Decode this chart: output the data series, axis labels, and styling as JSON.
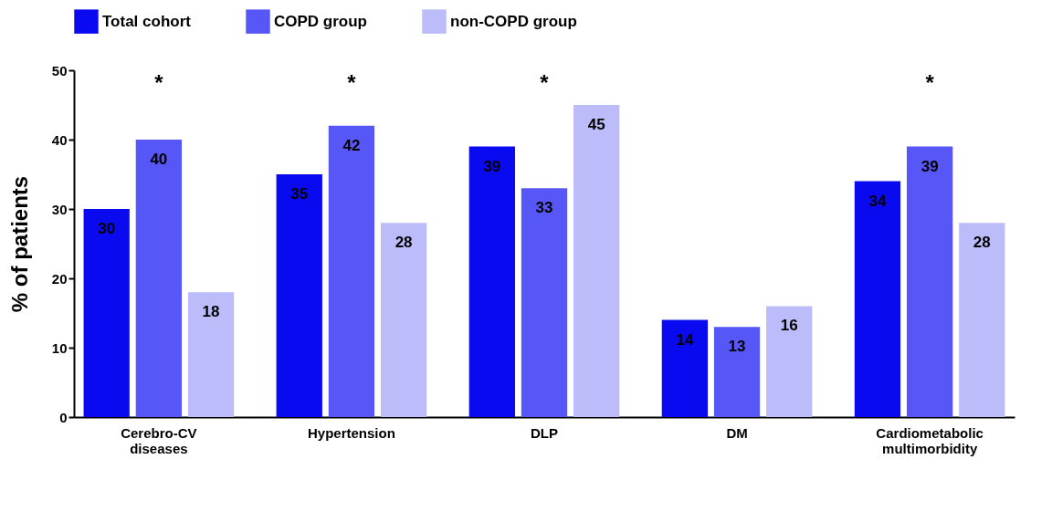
{
  "chart_data": {
    "type": "bar",
    "ylabel": "% of patients",
    "categories": [
      "Cerebro-CV diseases",
      "Hypertension",
      "DLP",
      "DM",
      "Cardiometabolic multimorbidity"
    ],
    "series": [
      {
        "name": "Total cohort",
        "color": "#0a0af0",
        "values": [
          30,
          35,
          39,
          14,
          34
        ]
      },
      {
        "name": "COPD group",
        "color": "#5757f7",
        "values": [
          40,
          42,
          33,
          13,
          39
        ]
      },
      {
        "name": "non-COPD group",
        "color": "#bcbcfa",
        "values": [
          18,
          28,
          45,
          16,
          28
        ]
      }
    ],
    "ylim": [
      0,
      50
    ],
    "yticks": [
      0,
      10,
      20,
      30,
      40,
      50
    ],
    "grid": false,
    "legend": "top",
    "data_labels": true,
    "annotations": [
      "*",
      "*",
      "*",
      "*"
    ]
  }
}
